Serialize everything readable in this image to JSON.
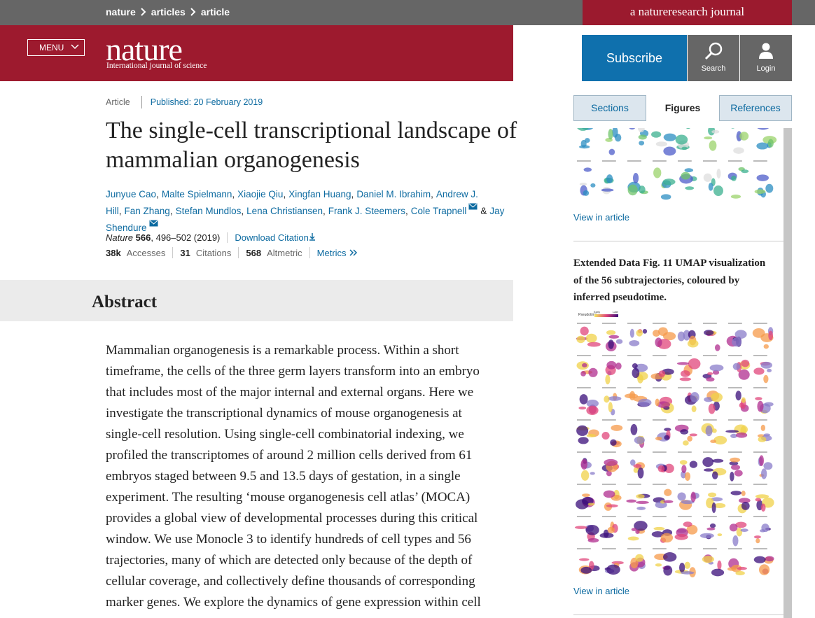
{
  "breadcrumb": [
    "nature",
    "articles",
    "article"
  ],
  "journal_badge": "a natureresearch journal",
  "menu": "MENU",
  "logo": {
    "name": "nature",
    "tagline": "International journal of science"
  },
  "actions": {
    "subscribe": "Subscribe",
    "search": "Search",
    "login": "Login"
  },
  "tabs": [
    "Sections",
    "Figures",
    "References"
  ],
  "article": {
    "type": "Article",
    "published": "Published: 20 February 2019",
    "title": "The single-cell transcriptional landscape of mammalian organogenesis",
    "authors": [
      {
        "name": "Junyue Cao"
      },
      {
        "name": "Malte Spielmann"
      },
      {
        "name": "Xiaojie Qiu"
      },
      {
        "name": "Xingfan Huang"
      },
      {
        "name": "Daniel M. Ibrahim"
      },
      {
        "name": "Andrew J. Hill"
      },
      {
        "name": "Fan Zhang"
      },
      {
        "name": "Stefan Mundlos"
      },
      {
        "name": "Lena Christiansen"
      },
      {
        "name": "Frank J. Steemers"
      },
      {
        "name": "Cole Trapnell",
        "corresponding": true
      },
      {
        "name": "Jay Shendure",
        "corresponding": true
      }
    ],
    "separator": ",",
    "conjunction": "&",
    "citation": {
      "journal": "Nature",
      "volume": "566",
      "pages": ", 496–502 (2019)",
      "download": "Download Citation"
    },
    "metrics": [
      {
        "value": "38k",
        "label": "Accesses"
      },
      {
        "value": "31",
        "label": "Citations"
      },
      {
        "value": "568",
        "label": "Altmetric"
      }
    ],
    "metrics_link": "Metrics"
  },
  "abstract": {
    "heading": "Abstract",
    "text": "Mammalian organogenesis is a remarkable process. Within a short timeframe, the cells of the three germ layers transform into an embryo that includes most of the major internal and external organs. Here we investigate the transcriptional dynamics of mouse organogenesis at single-cell resolution. Using single-cell combinatorial indexing, we profiled the transcriptomes of around 2 million cells derived from 61 embryos staged between 9.5 and 13.5 days of gestation, in a single experiment. The resulting ‘mouse organogenesis cell atlas’ (MOCA) provides a global view of developmental processes during this critical window. We use Monocle 3 to identify hundreds of cell types and 56 trajectories, many of which are detected only because of the depth of cellular coverage, and collectively define thousands of corresponding marker genes. We explore the dynamics of gene expression within cell"
  },
  "sidebar": {
    "link_1": "View in article",
    "caption": "Extended Data Fig. 11 UMAP visualization of the 56 subtrajectories, coloured by inferred pseudotime.",
    "legend": {
      "title": "Pseudotime",
      "low": "Early",
      "high": "Late"
    },
    "link_2": "View in article"
  }
}
